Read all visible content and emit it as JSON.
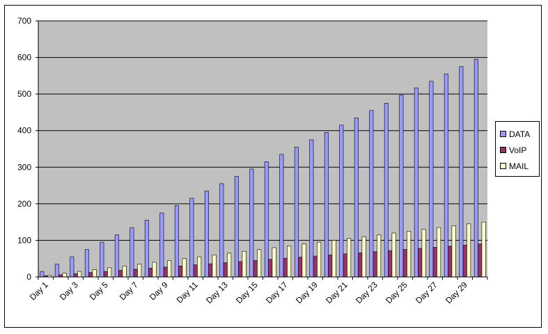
{
  "chart_data": {
    "type": "bar",
    "title": "",
    "xlabel": "",
    "ylabel": "",
    "ylim": [
      0,
      700
    ],
    "yticks": [
      0,
      100,
      200,
      300,
      400,
      500,
      600,
      700
    ],
    "grid": true,
    "legend_position": "right",
    "categories": [
      "Day 1",
      "Day 2",
      "Day 3",
      "Day 4",
      "Day 5",
      "Day 6",
      "Day 7",
      "Day 8",
      "Day 9",
      "Day 10",
      "Day 11",
      "Day 12",
      "Day 13",
      "Day 14",
      "Day 15",
      "Day 16",
      "Day 17",
      "Day 18",
      "Day 19",
      "Day 20",
      "Day 21",
      "Day 22",
      "Day 23",
      "Day 24",
      "Day 25",
      "Day 26",
      "Day 27",
      "Day 28",
      "Day 29",
      "Day 30"
    ],
    "xtick_labels": [
      "Day 1",
      "Day 3",
      "Day 5",
      "Day 7",
      "Day 9",
      "Day 11",
      "Day 13",
      "Day 15",
      "Day 17",
      "Day 19",
      "Day 21",
      "Day 23",
      "Day 25",
      "Day 27",
      "Day 29"
    ],
    "series": [
      {
        "name": "DATA",
        "color": "#9999ff",
        "values": [
          15,
          35,
          55,
          75,
          95,
          115,
          135,
          155,
          175,
          195,
          215,
          235,
          255,
          275,
          295,
          315,
          335,
          355,
          375,
          395,
          415,
          435,
          455,
          475,
          497,
          517,
          535,
          555,
          575,
          595
        ]
      },
      {
        "name": "VoIP",
        "color": "#993366",
        "values": [
          3,
          6,
          9,
          12,
          15,
          18,
          21,
          24,
          27,
          30,
          33,
          36,
          39,
          42,
          45,
          48,
          51,
          54,
          57,
          60,
          63,
          66,
          69,
          72,
          75,
          78,
          81,
          84,
          87,
          90
        ]
      },
      {
        "name": "MAIL",
        "color": "#ffffcc",
        "values": [
          5,
          10,
          15,
          20,
          25,
          30,
          35,
          40,
          45,
          50,
          55,
          60,
          65,
          70,
          75,
          80,
          85,
          90,
          95,
          100,
          105,
          110,
          115,
          120,
          125,
          130,
          135,
          140,
          145,
          150
        ]
      }
    ]
  },
  "colors": {
    "plot_background": "#c0c0c0",
    "gridline": "#000000"
  }
}
